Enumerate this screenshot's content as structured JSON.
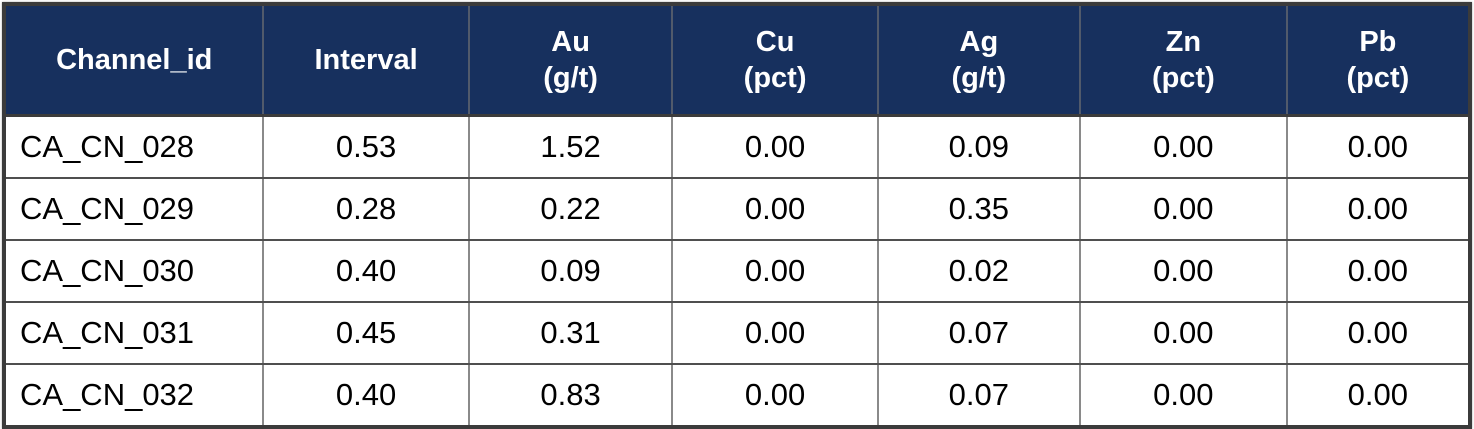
{
  "colors": {
    "header_bg": "#17305E",
    "header_text": "#FFFFFF",
    "body_text": "#000000",
    "grid_vertical": "#8A8A8A",
    "grid_horizontal": "#4F4F4F",
    "outer_border": "#3B3B3B"
  },
  "table": {
    "columns": [
      {
        "label": "Channel_id"
      },
      {
        "label": "Interval"
      },
      {
        "label": "Au\n(g/t)"
      },
      {
        "label": "Cu\n(pct)"
      },
      {
        "label": "Ag\n(g/t)"
      },
      {
        "label": "Zn\n(pct)"
      },
      {
        "label": "Pb\n(pct)"
      }
    ],
    "rows": [
      {
        "cells": [
          "CA_CN_028",
          "0.53",
          "1.52",
          "0.00",
          "0.09",
          "0.00",
          "0.00"
        ]
      },
      {
        "cells": [
          "CA_CN_029",
          "0.28",
          "0.22",
          "0.00",
          "0.35",
          "0.00",
          "0.00"
        ]
      },
      {
        "cells": [
          "CA_CN_030",
          "0.40",
          "0.09",
          "0.00",
          "0.02",
          "0.00",
          "0.00"
        ]
      },
      {
        "cells": [
          "CA_CN_031",
          "0.45",
          "0.31",
          "0.00",
          "0.07",
          "0.00",
          "0.00"
        ]
      },
      {
        "cells": [
          "CA_CN_032",
          "0.40",
          "0.83",
          "0.00",
          "0.07",
          "0.00",
          "0.00"
        ]
      }
    ]
  },
  "chart_data": {
    "type": "table",
    "title": "",
    "columns": [
      "Channel_id",
      "Interval",
      "Au (g/t)",
      "Cu (pct)",
      "Ag (g/t)",
      "Zn (pct)",
      "Pb (pct)"
    ],
    "rows": [
      [
        "CA_CN_028",
        0.53,
        1.52,
        0.0,
        0.09,
        0.0,
        0.0
      ],
      [
        "CA_CN_029",
        0.28,
        0.22,
        0.0,
        0.35,
        0.0,
        0.0
      ],
      [
        "CA_CN_030",
        0.4,
        0.09,
        0.0,
        0.02,
        0.0,
        0.0
      ],
      [
        "CA_CN_031",
        0.45,
        0.31,
        0.0,
        0.07,
        0.0,
        0.0
      ],
      [
        "CA_CN_032",
        0.4,
        0.83,
        0.0,
        0.07,
        0.0,
        0.0
      ]
    ]
  }
}
